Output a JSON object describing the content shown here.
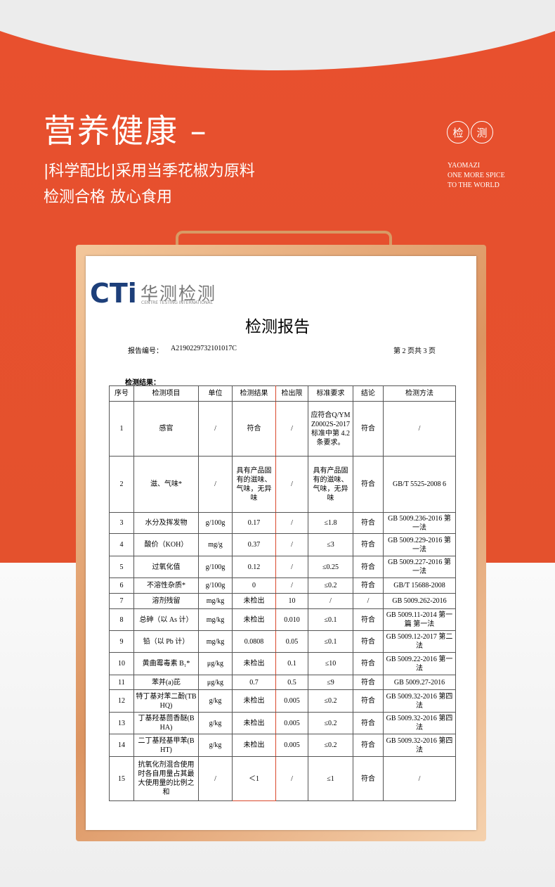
{
  "header": {
    "title": "营养健康",
    "lines": [
      "|科学配比|采用当季花椒为原料",
      "检测合格 放心食用"
    ],
    "badge": [
      "检",
      "测"
    ],
    "brand": [
      "YAOMAZI",
      "ONE MORE SPICE",
      "TO THE WORLD"
    ]
  },
  "report": {
    "logo": "CTi",
    "company": "华测检测",
    "company_en": "CENTRE TESTING INTERNATIONAL",
    "title": "检测报告",
    "number_label": "报告编号：",
    "number": "A2190229732101017C",
    "page": "第 2 页共 3 页",
    "section": "检测结果：",
    "table": {
      "header": [
        "序号",
        "检测项目",
        "单位",
        "检测结果",
        "检出限",
        "标准要求",
        "结论",
        "检测方法"
      ],
      "rows": [
        [
          "1",
          "感官",
          "/",
          "符合",
          "/",
          "应符合Q/YMZ0002S-2017 标准中第 4.2 条要求。",
          "符合",
          "/"
        ],
        [
          "2",
          "滋、气味*",
          "/",
          "具有产品固有的滋味、气味，无异味",
          "/",
          "具有产品固有的滋味、气味，无异味",
          "符合",
          "GB/T 5525-2008 6"
        ],
        [
          "3",
          "水分及挥发物",
          "g/100g",
          "0.17",
          "/",
          "≤1.8",
          "符合",
          "GB 5009.236-2016 第一法"
        ],
        [
          "4",
          "酸价（KOH）",
          "mg/g",
          "0.37",
          "/",
          "≤3",
          "符合",
          "GB 5009.229-2016 第一法"
        ],
        [
          "5",
          "过氧化值",
          "g/100g",
          "0.12",
          "/",
          "≤0.25",
          "符合",
          "GB 5009.227-2016 第一法"
        ],
        [
          "6",
          "不溶性杂质*",
          "g/100g",
          "0",
          "/",
          "≤0.2",
          "符合",
          "GB/T 15688-2008"
        ],
        [
          "7",
          "溶剂残留",
          "mg/kg",
          "未检出",
          "10",
          "/",
          "/",
          "GB 5009.262-2016"
        ],
        [
          "8",
          "总砷（以 As 计）",
          "mg/kg",
          "未检出",
          "0.010",
          "≤0.1",
          "符合",
          "GB 5009.11-2014 第一篇 第一法"
        ],
        [
          "9",
          "铅（以 Pb 计）",
          "mg/kg",
          "0.0808",
          "0.05",
          "≤0.1",
          "符合",
          "GB 5009.12-2017 第二法"
        ],
        [
          "10",
          "黄曲霉毒素 B₁*",
          "μg/kg",
          "未检出",
          "0.1",
          "≤10",
          "符合",
          "GB 5009.22-2016 第一法"
        ],
        [
          "11",
          "苯并(a)芘",
          "μg/kg",
          "0.7",
          "0.5",
          "≤9",
          "符合",
          "GB 5009.27-2016"
        ],
        [
          "12",
          "特丁基对苯二酚(TBHQ)",
          "g/kg",
          "未检出",
          "0.005",
          "≤0.2",
          "符合",
          "GB 5009.32-2016 第四法"
        ],
        [
          "13",
          "丁基羟基茴香醚(BHA)",
          "g/kg",
          "未检出",
          "0.005",
          "≤0.2",
          "符合",
          "GB 5009.32-2016 第四法"
        ],
        [
          "14",
          "二丁基羟基甲苯(BHT)",
          "g/kg",
          "未检出",
          "0.005",
          "≤0.2",
          "符合",
          "GB 5009.32-2016 第四法"
        ],
        [
          "15",
          "抗氧化剂混合使用时各自用量占其最大使用量的比例之和",
          "/",
          "＜1",
          "/",
          "≤1",
          "符合",
          "/"
        ]
      ]
    }
  }
}
